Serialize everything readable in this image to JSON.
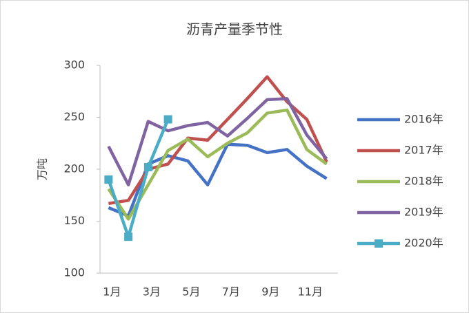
{
  "chart_data": {
    "type": "line",
    "title": "沥青产量季节性",
    "y_label": "万吨",
    "categories": [
      "1月",
      null,
      "3月",
      null,
      "5月",
      null,
      "7月",
      null,
      "9月",
      null,
      "11月",
      null
    ],
    "ylim": [
      100,
      300
    ],
    "yticks": [
      100,
      150,
      200,
      250,
      300
    ],
    "legend": "right",
    "series": [
      {
        "name": "2016年",
        "color": "#4472c4",
        "values": [
          163,
          155,
          205,
          213,
          208,
          185,
          224,
          223,
          216,
          219,
          203,
          191
        ]
      },
      {
        "name": "2017年",
        "color": "#c0504d",
        "values": [
          167,
          170,
          200,
          205,
          230,
          228,
          248,
          268,
          289,
          265,
          248,
          207
        ]
      },
      {
        "name": "2018年",
        "color": "#9bbb59",
        "values": [
          181,
          152,
          185,
          218,
          229,
          212,
          225,
          235,
          254,
          257,
          219,
          205
        ]
      },
      {
        "name": "2019年",
        "color": "#8064a2",
        "values": [
          222,
          185,
          246,
          237,
          242,
          245,
          232,
          249,
          267,
          268,
          233,
          210
        ]
      },
      {
        "name": "2020年",
        "color": "#4bacc6",
        "marker": "square",
        "values": [
          190,
          135,
          202,
          248,
          null,
          null,
          null,
          null,
          null,
          null,
          null,
          null
        ]
      }
    ]
  }
}
